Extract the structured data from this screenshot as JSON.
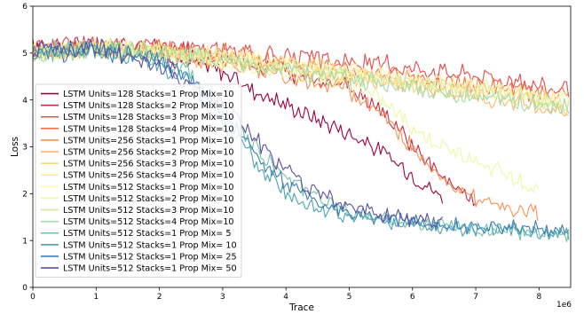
{
  "chart_data": {
    "type": "line",
    "xlabel": "Trace",
    "ylabel": "Loss",
    "x_offset_label": "1e6",
    "xlim": [
      0,
      8.5
    ],
    "ylim": [
      0,
      6
    ],
    "x_ticks": [
      0,
      1,
      2,
      3,
      4,
      5,
      6,
      7,
      8
    ],
    "y_ticks": [
      0,
      1,
      2,
      3,
      4,
      5,
      6
    ],
    "grid": false,
    "legend_position": "center-left",
    "series": [
      {
        "name": "LSTM Units=128 Stacks=1 Prop Mix=10",
        "color": "#9e0142",
        "x": [
          0,
          1,
          2,
          3,
          3.5,
          4,
          4.5,
          5,
          5.5,
          6,
          6.5
        ],
        "y": [
          5.1,
          5.1,
          5.0,
          4.6,
          4.2,
          3.9,
          3.6,
          3.3,
          2.9,
          2.4,
          1.9
        ]
      },
      {
        "name": "LSTM Units=128 Stacks=2 Prop Mix=10",
        "color": "#c52b4a",
        "x": [
          0,
          1,
          2,
          3,
          4,
          5,
          5.5,
          6,
          6.5,
          7
        ],
        "y": [
          5.1,
          5.15,
          5.1,
          4.9,
          4.6,
          4.3,
          3.8,
          3.0,
          2.3,
          1.8
        ]
      },
      {
        "name": "LSTM Units=128 Stacks=3 Prop Mix=10",
        "color": "#e24d4c",
        "x": [
          0,
          1,
          2,
          3,
          4,
          5,
          6,
          7,
          8,
          8.5
        ],
        "y": [
          5.1,
          5.2,
          5.15,
          5.05,
          4.9,
          4.8,
          4.7,
          4.55,
          4.3,
          4.2
        ]
      },
      {
        "name": "LSTM Units=128 Stacks=4 Prop Mix=10",
        "color": "#f46d43",
        "x": [
          0,
          1,
          2,
          3,
          4,
          5,
          6,
          7,
          8,
          8.5
        ],
        "y": [
          5.0,
          5.1,
          5.1,
          5.0,
          4.8,
          4.6,
          4.5,
          4.3,
          4.15,
          4.1
        ]
      },
      {
        "name": "LSTM Units=256 Stacks=1 Prop Mix=10",
        "color": "#f99254",
        "x": [
          0,
          1,
          2,
          3,
          4,
          5,
          5.5,
          6,
          6.5,
          7,
          7.5,
          8
        ],
        "y": [
          5.0,
          5.1,
          5.05,
          4.8,
          4.5,
          4.2,
          3.7,
          3.0,
          2.3,
          1.9,
          1.7,
          1.6
        ]
      },
      {
        "name": "LSTM Units=256 Stacks=2 Prop Mix=10",
        "color": "#fdb768",
        "x": [
          0,
          1,
          2,
          3,
          4,
          5,
          6,
          7,
          8,
          8.5
        ],
        "y": [
          5.0,
          5.1,
          5.0,
          4.85,
          4.7,
          4.5,
          4.3,
          4.1,
          3.85,
          3.7
        ]
      },
      {
        "name": "LSTM Units=256 Stacks=3 Prop Mix=10",
        "color": "#fed27f",
        "x": [
          0,
          1,
          2,
          3,
          4,
          5,
          6,
          7,
          8,
          8.5
        ],
        "y": [
          5.0,
          5.1,
          5.05,
          4.9,
          4.75,
          4.55,
          4.35,
          4.2,
          4.0,
          3.9
        ]
      },
      {
        "name": "LSTM Units=256 Stacks=4 Prop Mix=10",
        "color": "#fee99a",
        "x": [
          0,
          1,
          2,
          3,
          4,
          5,
          6,
          7,
          8,
          8.5
        ],
        "y": [
          5.0,
          5.1,
          5.05,
          4.95,
          4.8,
          4.6,
          4.45,
          4.3,
          4.1,
          4.0
        ]
      },
      {
        "name": "LSTM Units=512 Stacks=1 Prop Mix=10",
        "color": "#fbf8b0",
        "x": [
          0,
          1,
          2,
          3,
          4,
          5,
          6,
          7,
          8,
          8.5
        ],
        "y": [
          5.0,
          5.05,
          5.0,
          4.9,
          4.75,
          4.55,
          4.4,
          4.25,
          4.05,
          3.95
        ]
      },
      {
        "name": "LSTM Units=512 Stacks=2 Prop Mix=10",
        "color": "#eef8a4",
        "x": [
          0,
          1,
          2,
          3,
          4,
          5,
          5.5,
          6,
          6.5,
          7,
          7.5,
          8
        ],
        "y": [
          5.0,
          5.1,
          5.0,
          4.8,
          4.6,
          4.4,
          4.0,
          3.4,
          3.0,
          2.7,
          2.4,
          2.0
        ]
      },
      {
        "name": "LSTM Units=512 Stacks=3 Prop Mix=10",
        "color": "#cfec9d",
        "x": [
          0,
          1,
          2,
          3,
          4,
          5,
          6,
          7,
          8,
          8.5
        ],
        "y": [
          5.0,
          5.1,
          5.05,
          4.9,
          4.7,
          4.5,
          4.35,
          4.2,
          4.0,
          3.9
        ]
      },
      {
        "name": "LSTM Units=512 Stacks=4 Prop Mix=10",
        "color": "#a4daa4",
        "x": [
          0,
          1,
          2,
          3,
          4,
          5,
          6,
          7,
          8,
          8.5
        ],
        "y": [
          5.0,
          5.05,
          5.0,
          4.85,
          4.65,
          4.45,
          4.25,
          4.05,
          3.9,
          3.8
        ]
      },
      {
        "name": "LSTM Units=512 Stacks=1 Prop Mix= 5",
        "color": "#74c2a5",
        "x": [
          0,
          1,
          2,
          2.5,
          3,
          3.5,
          4,
          4.5,
          5,
          6,
          7,
          8,
          8.5
        ],
        "y": [
          5.0,
          5.1,
          4.9,
          4.5,
          3.8,
          3.0,
          2.3,
          1.9,
          1.6,
          1.4,
          1.25,
          1.15,
          1.1
        ]
      },
      {
        "name": "LSTM Units=512 Stacks=1 Prop Mix= 10",
        "color": "#4ba4b1",
        "x": [
          0,
          1,
          2,
          2.5,
          3,
          3.5,
          4,
          4.5,
          5,
          6,
          7,
          8,
          8.5
        ],
        "y": [
          5.0,
          5.1,
          4.8,
          4.3,
          3.5,
          2.7,
          2.0,
          1.7,
          1.5,
          1.35,
          1.25,
          1.2,
          1.15
        ]
      },
      {
        "name": "LSTM Units=512 Stacks=1 Prop Mix= 25",
        "color": "#3f7fb9",
        "x": [
          0,
          1,
          2,
          2.5,
          3,
          3.5,
          4,
          4.5,
          5,
          6,
          7,
          8,
          8.5
        ],
        "y": [
          5.0,
          5.05,
          4.85,
          4.4,
          3.7,
          2.9,
          2.2,
          1.8,
          1.55,
          1.4,
          1.3,
          1.25,
          1.2
        ]
      },
      {
        "name": "LSTM Units=512 Stacks=1 Prop Mix= 50",
        "color": "#5e4fa2",
        "x": [
          0,
          1,
          2,
          2.5,
          3,
          3.5,
          4,
          4.5,
          5,
          5.5,
          6,
          6.5
        ],
        "y": [
          5.0,
          5.1,
          4.7,
          4.3,
          3.9,
          3.2,
          2.5,
          2.0,
          1.7,
          1.55,
          1.45,
          1.4
        ]
      }
    ]
  }
}
